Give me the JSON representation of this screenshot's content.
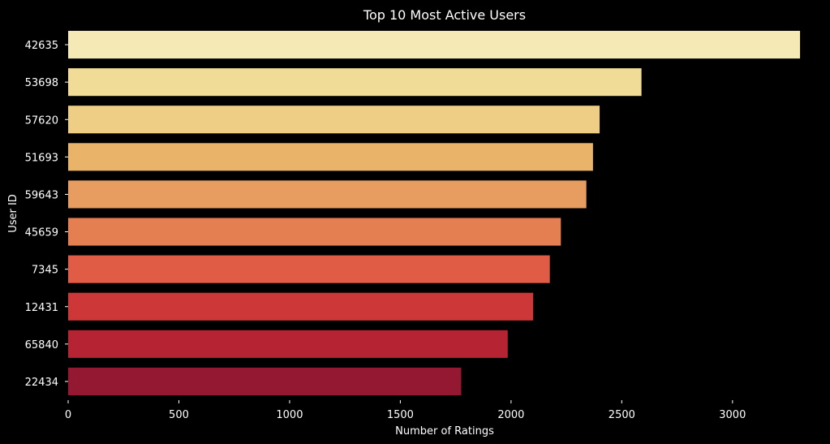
{
  "chart_data": {
    "type": "bar",
    "orientation": "horizontal",
    "title": "Top 10 Most Active Users",
    "xlabel": "Number of Ratings",
    "ylabel": "User ID",
    "categories": [
      "42635",
      "53698",
      "57620",
      "51693",
      "59643",
      "45659",
      "7345",
      "12431",
      "65840",
      "22434"
    ],
    "values": [
      3305,
      2589,
      2400,
      2370,
      2340,
      2225,
      2175,
      2100,
      1985,
      1775
    ],
    "colors": [
      "#f5eab5",
      "#f0dc96",
      "#eecd84",
      "#e9b36a",
      "#e69d5f",
      "#e47f51",
      "#e05c44",
      "#cd3737",
      "#b62333",
      "#941832"
    ],
    "xlim": [
      0,
      3400
    ],
    "xticks": [
      0,
      500,
      1000,
      1500,
      2000,
      2500,
      3000
    ],
    "grid": false,
    "background": "#000000",
    "text_color": "#ffffff"
  }
}
